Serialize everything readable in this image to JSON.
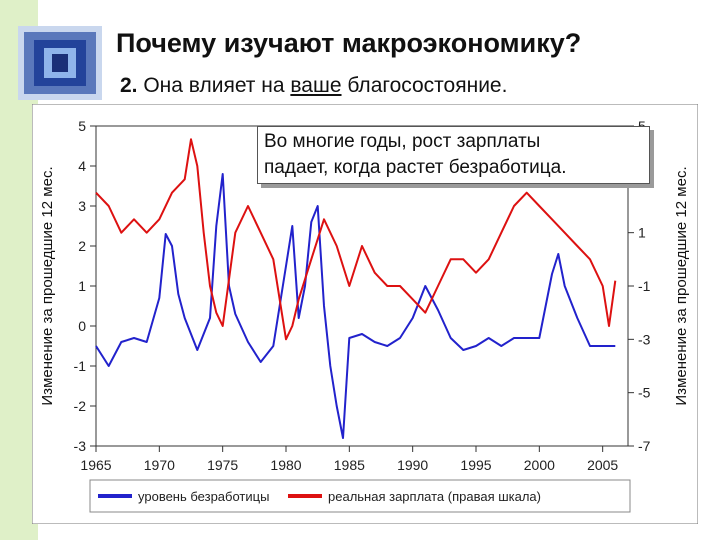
{
  "slide": {
    "title": "Почему изучают макроэкономику?",
    "subtitle_num": "2.",
    "subtitle_before": " Она влияет на ",
    "subtitle_underlined": "ваше",
    "subtitle_after": " благосостояние.",
    "callout_line1": "Во многие годы, рост зарплаты",
    "callout_line2": "падает, когда растет безработица."
  },
  "colors": {
    "unemployment": "#2222cc",
    "real_wage": "#dd1111",
    "side_strip": "#dff0c8"
  },
  "chart_data": {
    "type": "line",
    "ylabel": "Изменение за прошедшие 12 мес.",
    "y2label": "Изменение за прошедшие 12 мес.",
    "xlim": [
      1965,
      2007
    ],
    "ylim": [
      -3,
      5
    ],
    "y2lim": [
      -7,
      5
    ],
    "xticks": [
      1965,
      1970,
      1975,
      1980,
      1985,
      1990,
      1995,
      2000,
      2005
    ],
    "yticks": [
      5,
      4,
      3,
      2,
      1,
      0,
      -1,
      -2,
      -3
    ],
    "y2ticks": [
      5,
      1,
      -1,
      -3,
      -5,
      -7
    ],
    "y2tick_labels": [
      "5",
      "1",
      "-1",
      "-3",
      "-5",
      "-7"
    ],
    "legend_position": "bottom",
    "grid": false,
    "series": [
      {
        "name": "уровень безработицы",
        "axis": "left",
        "x": [
          1965,
          1966,
          1967,
          1968,
          1969,
          1970,
          1970.5,
          1971,
          1971.5,
          1972,
          1973,
          1974,
          1974.5,
          1975,
          1975.5,
          1976,
          1977,
          1978,
          1979,
          1980,
          1980.5,
          1981,
          1981.5,
          1982,
          1982.5,
          1983,
          1983.5,
          1984,
          1984.5,
          1985,
          1986,
          1987,
          1988,
          1989,
          1990,
          1991,
          1992,
          1993,
          1994,
          1995,
          1996,
          1997,
          1998,
          1999,
          2000,
          2001,
          2001.5,
          2002,
          2003,
          2004,
          2005,
          2006
        ],
        "y": [
          -0.5,
          -1.0,
          -0.4,
          -0.3,
          -0.4,
          0.7,
          2.3,
          2.0,
          0.8,
          0.2,
          -0.6,
          0.2,
          2.5,
          3.8,
          1.0,
          0.3,
          -0.4,
          -0.9,
          -0.5,
          1.5,
          2.5,
          0.2,
          1.0,
          2.6,
          3.0,
          0.5,
          -1.0,
          -2.0,
          -2.8,
          -0.3,
          -0.2,
          -0.4,
          -0.5,
          -0.3,
          0.2,
          1.0,
          0.4,
          -0.3,
          -0.6,
          -0.5,
          -0.3,
          -0.5,
          -0.3,
          -0.3,
          -0.3,
          1.3,
          1.8,
          1.0,
          0.2,
          -0.5,
          -0.5,
          -0.5
        ]
      },
      {
        "name": "реальная зарплата (правая шкала)",
        "axis": "right",
        "x": [
          1965,
          1966,
          1967,
          1968,
          1969,
          1970,
          1971,
          1972,
          1972.5,
          1973,
          1973.5,
          1974,
          1974.5,
          1975,
          1976,
          1977,
          1978,
          1979,
          1980,
          1980.5,
          1981,
          1982,
          1983,
          1984,
          1985,
          1986,
          1987,
          1988,
          1989,
          1990,
          1991,
          1992,
          1993,
          1994,
          1995,
          1996,
          1997,
          1998,
          1999,
          2000,
          2001,
          2002,
          2003,
          2004,
          2005,
          2005.5,
          2006
        ],
        "y": [
          2.5,
          2.0,
          1.0,
          1.5,
          1.0,
          1.5,
          2.5,
          3.0,
          4.5,
          3.5,
          1.0,
          -1.0,
          -2.0,
          -2.5,
          1.0,
          2.0,
          1.0,
          0.0,
          -3.0,
          -2.5,
          -1.5,
          0.0,
          1.5,
          0.5,
          -1.0,
          0.5,
          -0.5,
          -1.0,
          -1.0,
          -1.5,
          -2.0,
          -1.0,
          0.0,
          0.0,
          -0.5,
          0.0,
          1.0,
          2.0,
          2.5,
          2.0,
          1.5,
          1.0,
          0.5,
          0.0,
          -1.0,
          -2.5,
          -0.8
        ]
      }
    ]
  }
}
